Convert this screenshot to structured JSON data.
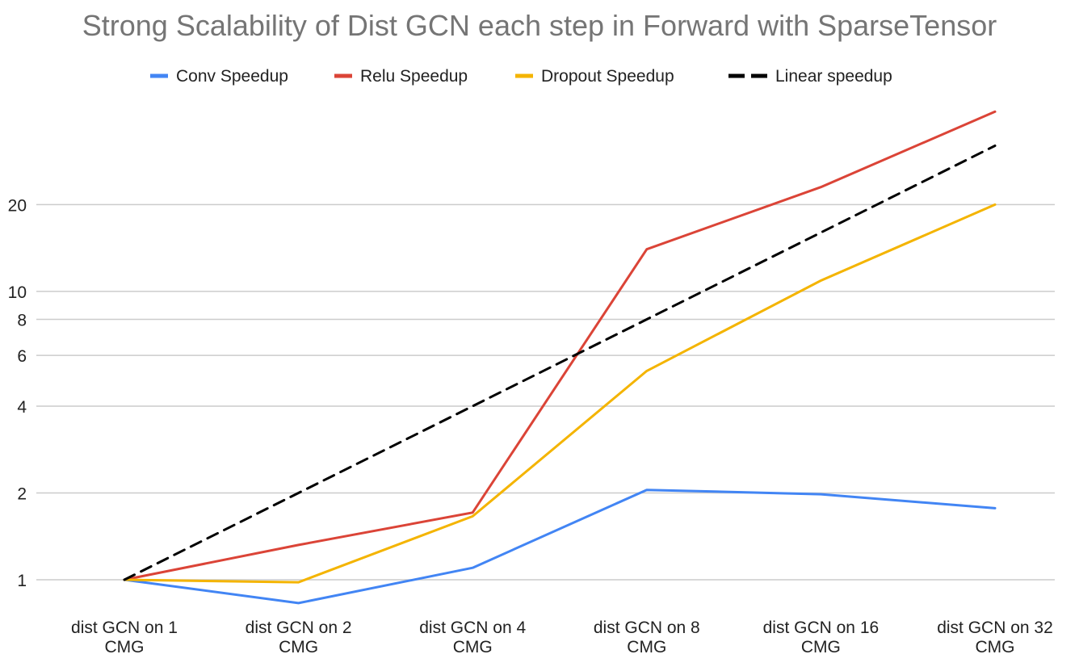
{
  "chart_data": {
    "type": "line",
    "title": "Strong Scalability of Dist GCN each step in Forward with SparseTensor",
    "xlabel": "",
    "ylabel": "",
    "y_scale": "log",
    "ylim": [
      0.83,
      42
    ],
    "y_ticks": [
      1,
      2,
      4,
      6,
      8,
      10,
      20
    ],
    "grid": true,
    "legend_position": "top",
    "categories": [
      [
        "dist GCN on 1",
        "CMG"
      ],
      [
        "dist GCN on 2",
        "CMG"
      ],
      [
        "dist GCN on 4",
        "CMG"
      ],
      [
        "dist GCN on 8",
        "CMG"
      ],
      [
        "dist GCN on 16",
        "CMG"
      ],
      [
        "dist GCN on 32",
        "CMG"
      ]
    ],
    "series": [
      {
        "name": "Conv Speedup",
        "color": "#4285f4",
        "style": "solid",
        "values": [
          1,
          0.83,
          1.1,
          2.05,
          1.98,
          1.77
        ]
      },
      {
        "name": "Relu Speedup",
        "color": "#db4437",
        "style": "solid",
        "values": [
          1,
          1.32,
          1.71,
          14,
          23,
          42
        ]
      },
      {
        "name": "Dropout Speedup",
        "color": "#f4b400",
        "style": "solid",
        "values": [
          1,
          0.98,
          1.66,
          5.3,
          10.9,
          20
        ]
      },
      {
        "name": "Linear speedup",
        "color": "#000000",
        "style": "dashed",
        "values": [
          1,
          2,
          4,
          8,
          16,
          32
        ]
      }
    ]
  }
}
